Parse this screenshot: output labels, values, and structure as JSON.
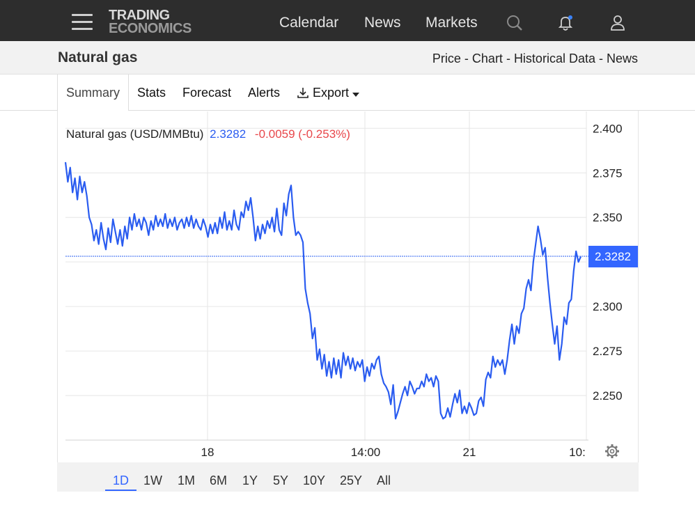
{
  "nav": {
    "logo_line1": "TRADING",
    "logo_line2": "ECONOMICS",
    "links": [
      "Calendar",
      "News",
      "Markets"
    ]
  },
  "subheader": {
    "title": "Natural gas",
    "links": [
      "Price",
      "Chart",
      "Historical Data",
      "News"
    ],
    "separator": " - "
  },
  "tabs": [
    "Summary",
    "Stats",
    "Forecast",
    "Alerts",
    "Export"
  ],
  "ranges": [
    "1D",
    "1W",
    "1M",
    "6M",
    "1Y",
    "5Y",
    "10Y",
    "25Y",
    "All"
  ],
  "selected_range": "1D",
  "colors": {
    "line": "#2a5cf0",
    "negative": "#e8474b",
    "accent": "#3366ff",
    "topbar": "#2d2d2d"
  },
  "chart_data": {
    "type": "line",
    "header_label": "Natural gas (USD/MMBtu)",
    "last_value": "2.3282",
    "change": "-0.0059 (-0.253%)",
    "y_ticks": [
      "2.400",
      "2.375",
      "2.350",
      "2.300",
      "2.275",
      "2.250"
    ],
    "x_ticks": [
      "18",
      "14:00",
      "21",
      "10:"
    ],
    "ylim": [
      2.225,
      2.4095
    ],
    "grid": true,
    "series": [
      {
        "values": [
          2.381,
          2.37,
          2.378,
          2.364,
          2.372,
          2.36,
          2.373,
          2.364,
          2.37,
          2.362,
          2.35,
          2.346,
          2.337,
          2.343,
          2.335,
          2.347,
          2.338,
          2.332,
          2.344,
          2.336,
          2.349,
          2.342,
          2.335,
          2.343,
          2.334,
          2.345,
          2.338,
          2.35,
          2.343,
          2.352,
          2.345,
          2.349,
          2.343,
          2.35,
          2.347,
          2.34,
          2.348,
          2.343,
          2.351,
          2.345,
          2.349,
          2.345,
          2.352,
          2.344,
          2.349,
          2.345,
          2.35,
          2.343,
          2.347,
          2.349,
          2.344,
          2.35,
          2.345,
          2.351,
          2.344,
          2.349,
          2.345,
          2.343,
          2.349,
          2.345,
          2.339,
          2.346,
          2.341,
          2.347,
          2.341,
          2.35,
          2.344,
          2.353,
          2.343,
          2.348,
          2.343,
          2.354,
          2.346,
          2.343,
          2.353,
          2.35,
          2.359,
          2.354,
          2.361,
          2.35,
          2.337,
          2.345,
          2.338,
          2.346,
          2.341,
          2.348,
          2.344,
          2.35,
          2.342,
          2.355,
          2.343,
          2.34,
          2.358,
          2.351,
          2.363,
          2.368,
          2.35,
          2.34,
          2.342,
          2.34,
          2.336,
          2.31,
          2.302,
          2.296,
          2.282,
          2.288,
          2.27,
          2.276,
          2.265,
          2.273,
          2.261,
          2.269,
          2.26,
          2.271,
          2.262,
          2.27,
          2.26,
          2.274,
          2.267,
          2.272,
          2.265,
          2.271,
          2.264,
          2.269,
          2.266,
          2.27,
          2.258,
          2.266,
          2.261,
          2.268,
          2.265,
          2.27,
          2.272,
          2.262,
          2.257,
          2.255,
          2.252,
          2.245,
          2.256,
          2.237,
          2.241,
          2.246,
          2.251,
          2.255,
          2.25,
          2.258,
          2.255,
          2.251,
          2.254,
          2.254,
          2.258,
          2.255,
          2.262,
          2.258,
          2.26,
          2.255,
          2.261,
          2.258,
          2.24,
          2.237,
          2.238,
          2.243,
          2.238,
          2.245,
          2.251,
          2.246,
          2.253,
          2.24,
          2.244,
          2.24,
          2.246,
          2.243,
          2.239,
          2.24,
          2.247,
          2.249,
          2.244,
          2.259,
          2.263,
          2.26,
          2.272,
          2.266,
          2.27,
          2.267,
          2.27,
          2.262,
          2.27,
          2.281,
          2.29,
          2.279,
          2.289,
          2.285,
          2.296,
          2.299,
          2.31,
          2.315,
          2.309,
          2.325,
          2.335,
          2.345,
          2.338,
          2.329,
          2.333,
          2.316,
          2.302,
          2.29,
          2.279,
          2.289,
          2.27,
          2.279,
          2.294,
          2.29,
          2.302,
          2.304,
          2.32,
          2.331,
          2.325,
          2.328
        ]
      }
    ]
  }
}
